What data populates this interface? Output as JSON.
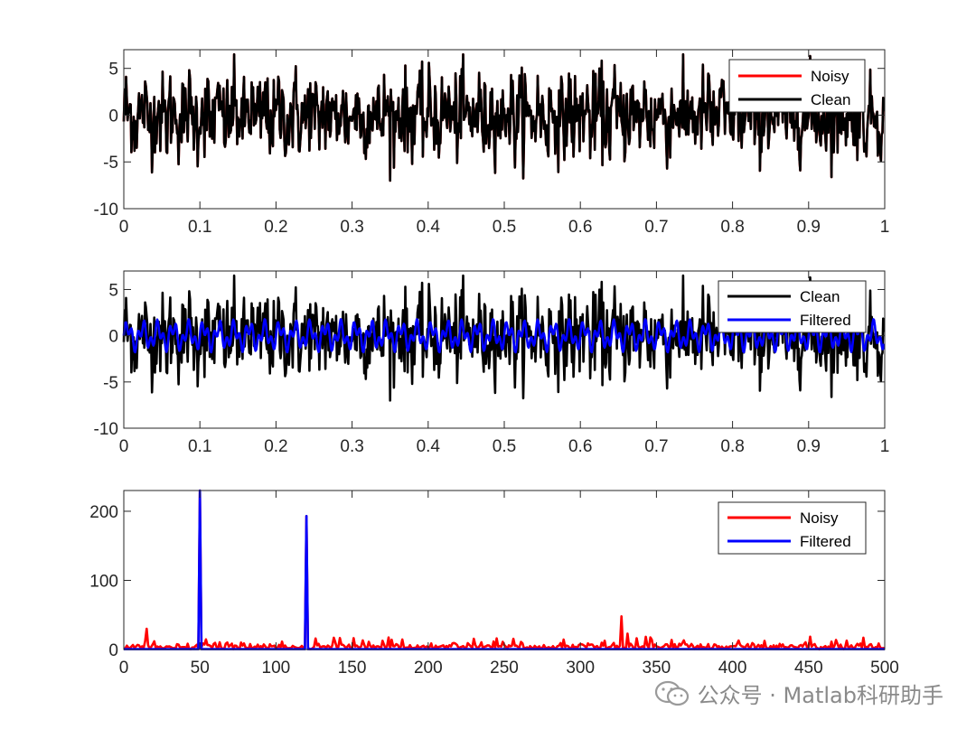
{
  "colors": {
    "noisy": "#ff0000",
    "clean": "#000000",
    "filtered": "#0000ff",
    "axis": "#262626"
  },
  "chart_data": [
    {
      "type": "line",
      "name": "time-domain-noisy-vs-clean",
      "xlim": [
        0,
        1
      ],
      "ylim": [
        -10,
        7
      ],
      "xticks": [
        "0",
        "0.1",
        "0.2",
        "0.3",
        "0.4",
        "0.5",
        "0.6",
        "0.7",
        "0.8",
        "0.9",
        "1"
      ],
      "yticks": [
        "5",
        "0",
        "-5",
        "-10"
      ],
      "ytick_values": [
        5,
        0,
        -5,
        -10
      ],
      "legend_position": "top-right",
      "series": [
        {
          "name": "Noisy",
          "color": "#ff0000",
          "signal": "noisy",
          "visible_behind": true
        },
        {
          "name": "Clean",
          "color": "#000000",
          "signal": "noisy"
        }
      ]
    },
    {
      "type": "line",
      "name": "time-domain-clean-vs-filtered",
      "xlim": [
        0,
        1
      ],
      "ylim": [
        -10,
        7
      ],
      "xticks": [
        "0",
        "0.1",
        "0.2",
        "0.3",
        "0.4",
        "0.5",
        "0.6",
        "0.7",
        "0.8",
        "0.9",
        "1"
      ],
      "yticks": [
        "5",
        "0",
        "-5",
        "-10"
      ],
      "ytick_values": [
        5,
        0,
        -5,
        -10
      ],
      "legend_position": "top-right",
      "series": [
        {
          "name": "Clean",
          "color": "#000000",
          "signal": "noisy"
        },
        {
          "name": "Filtered",
          "color": "#0000ff",
          "signal": "filtered"
        }
      ]
    },
    {
      "type": "line",
      "name": "frequency-spectrum",
      "xlim": [
        0,
        500
      ],
      "ylim": [
        0,
        230
      ],
      "xticks": [
        "0",
        "50",
        "100",
        "150",
        "200",
        "250",
        "300",
        "350",
        "400",
        "450",
        "500"
      ],
      "yticks": [
        "200",
        "100",
        "0"
      ],
      "ytick_values": [
        200,
        100,
        0
      ],
      "legend_position": "top-right",
      "series": [
        {
          "name": "Noisy",
          "color": "#ff0000",
          "signal": "noisy-spectrum",
          "peaks": [
            [
              50,
              230
            ],
            [
              120,
              193
            ],
            [
              15,
              30
            ],
            [
              327,
              48
            ]
          ]
        },
        {
          "name": "Filtered",
          "color": "#0000ff",
          "signal": "filtered-spectrum",
          "peaks": [
            [
              50,
              230
            ],
            [
              120,
              193
            ]
          ]
        }
      ]
    }
  ],
  "watermark": {
    "text": "公众号 · Matlab科研助手",
    "icon": "wechat-icon"
  }
}
